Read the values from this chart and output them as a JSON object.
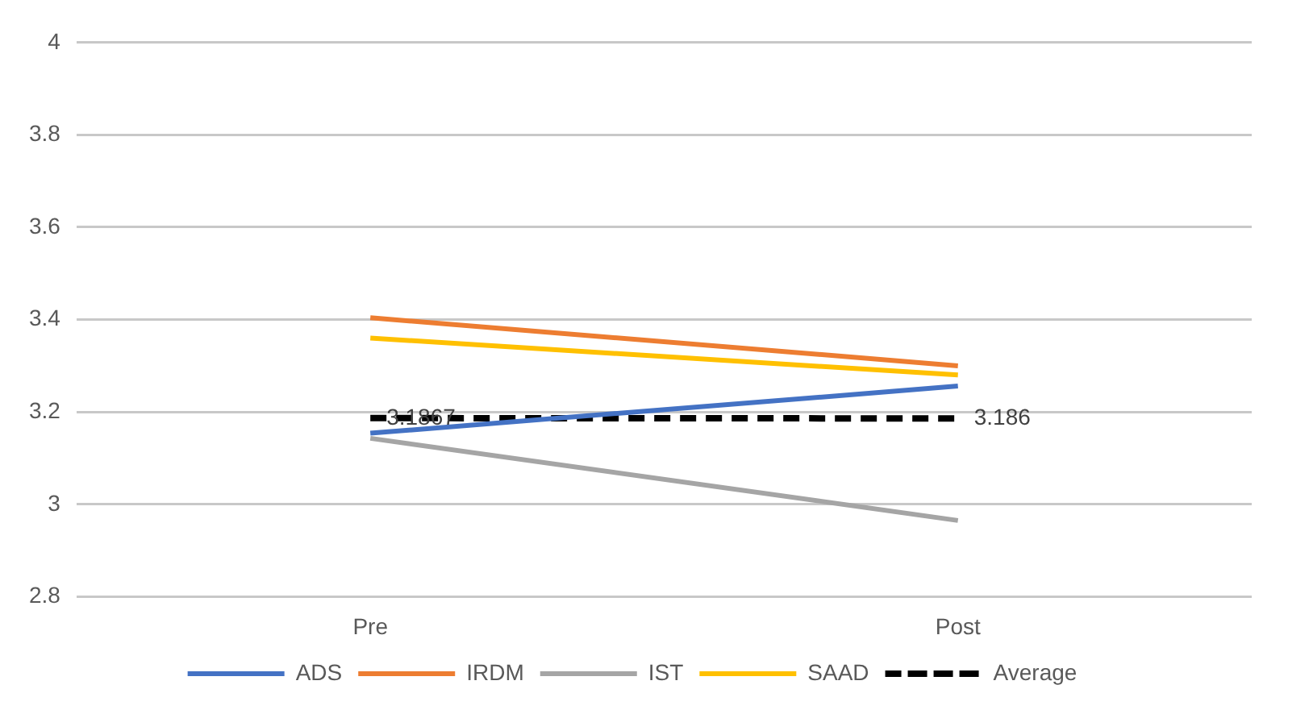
{
  "chart_data": {
    "type": "line",
    "categories": [
      "Pre",
      "Post"
    ],
    "series": [
      {
        "name": "ADS",
        "color": "#4472c4",
        "values": [
          3.154,
          3.256
        ]
      },
      {
        "name": "IRDM",
        "color": "#ed7d31",
        "values": [
          3.404,
          3.3
        ]
      },
      {
        "name": "IST",
        "color": "#a5a5a5",
        "values": [
          3.143,
          2.965
        ]
      },
      {
        "name": "SAAD",
        "color": "#ffc000",
        "values": [
          3.36,
          3.28
        ]
      },
      {
        "name": "Average",
        "color": "#000000",
        "values": [
          3.1867,
          3.186
        ],
        "line_style": "dashed",
        "value_labels": [
          "3.1867",
          "3.186"
        ]
      }
    ],
    "ylim": [
      2.8,
      4
    ],
    "yticks": [
      2.8,
      3,
      3.2,
      3.4,
      3.6,
      3.8,
      4
    ],
    "grid": "y",
    "legend": "bottom",
    "marker": "none"
  }
}
